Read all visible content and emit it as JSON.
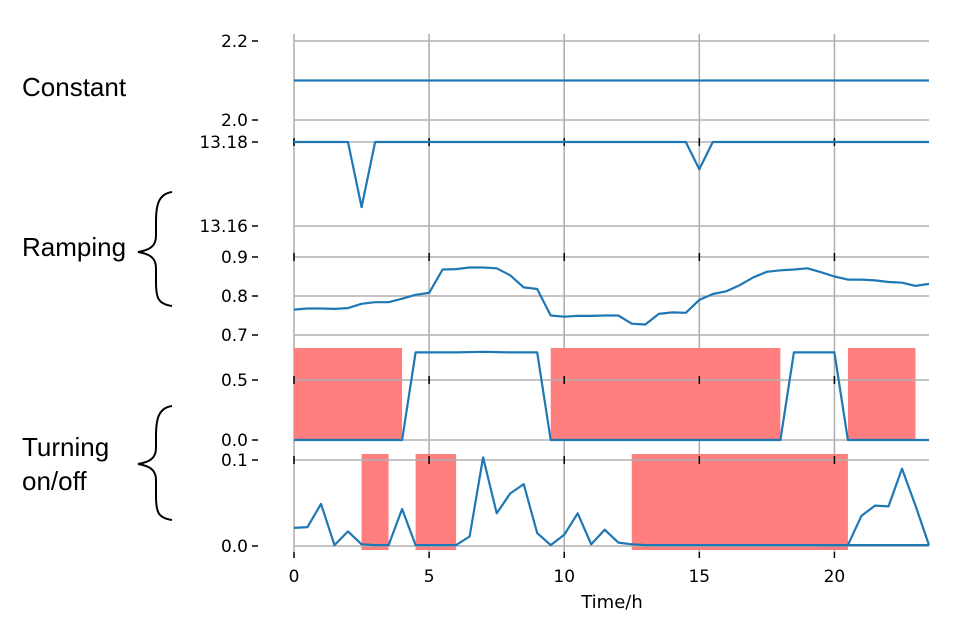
{
  "side_labels": {
    "constant": "Constant",
    "ramping": "Ramping",
    "turning_line1": "Turning",
    "turning_line2": "on/off"
  },
  "colors": {
    "line": "#1f77b4",
    "shade": "#ff7f7f",
    "grid": "#b0b0b0"
  },
  "chart_data": [
    {
      "type": "line",
      "name": "panel-constant",
      "ylim": [
        2.0,
        2.2
      ],
      "yticks": [
        "2.0",
        "2.2"
      ],
      "x": [
        0,
        23.5
      ],
      "values": [
        2.1,
        2.1
      ]
    },
    {
      "type": "line",
      "name": "panel-ramping-1",
      "ylim": [
        13.16,
        13.18
      ],
      "yticks": [
        "13.16",
        "13.18"
      ],
      "x": [
        0,
        2,
        2.5,
        3,
        14.5,
        15,
        15.5,
        23.5
      ],
      "values": [
        13.18,
        13.18,
        13.1645,
        13.18,
        13.18,
        13.1735,
        13.18,
        13.18
      ]
    },
    {
      "type": "line",
      "name": "panel-ramping-2",
      "ylim": [
        0.7,
        0.9
      ],
      "yticks": [
        "0.7",
        "0.8",
        "0.9"
      ],
      "x": [
        0,
        0.5,
        1,
        1.5,
        2,
        2.5,
        3,
        3.5,
        4,
        4.5,
        5,
        5.5,
        6,
        6.5,
        7,
        7.5,
        8,
        8.5,
        9,
        9.5,
        10,
        10.5,
        11,
        11.5,
        12,
        12.5,
        13,
        13.5,
        14,
        14.5,
        15,
        15.5,
        16,
        16.5,
        17,
        17.5,
        18,
        18.5,
        19,
        19.5,
        20,
        20.5,
        21,
        21.5,
        22,
        22.5,
        23,
        23.5
      ],
      "values": [
        0.765,
        0.768,
        0.768,
        0.767,
        0.769,
        0.78,
        0.784,
        0.784,
        0.793,
        0.803,
        0.808,
        0.868,
        0.869,
        0.873,
        0.873,
        0.871,
        0.853,
        0.822,
        0.818,
        0.75,
        0.747,
        0.749,
        0.749,
        0.75,
        0.75,
        0.729,
        0.727,
        0.754,
        0.758,
        0.757,
        0.79,
        0.805,
        0.812,
        0.828,
        0.848,
        0.862,
        0.866,
        0.868,
        0.871,
        0.861,
        0.85,
        0.842,
        0.842,
        0.84,
        0.836,
        0.834,
        0.826,
        0.831
      ]
    },
    {
      "type": "line",
      "name": "panel-turning-1",
      "ylim": [
        0.0,
        0.8
      ],
      "yticks": [
        "0.0",
        "0.5"
      ],
      "x": [
        0,
        3,
        4,
        4.5,
        5,
        6,
        7,
        8,
        9,
        9.5,
        12,
        15,
        17,
        18,
        18.5,
        19,
        20,
        20.5,
        21,
        23.5
      ],
      "values": [
        0.0,
        0.0,
        0.0,
        0.73,
        0.73,
        0.73,
        0.735,
        0.73,
        0.73,
        0.0,
        0.0,
        0.0,
        0.0,
        0.0,
        0.73,
        0.73,
        0.73,
        0.0,
        0.0,
        0.0
      ],
      "shaded": [
        [
          0,
          4
        ],
        [
          9.5,
          18
        ],
        [
          20.5,
          23
        ]
      ]
    },
    {
      "type": "line",
      "name": "panel-turning-2",
      "ylim": [
        0.0,
        0.1
      ],
      "yticks": [
        "0.0",
        "0.1"
      ],
      "x": [
        0,
        0.5,
        1,
        1.5,
        2,
        2.5,
        3,
        3.5,
        4,
        4.5,
        5,
        5.5,
        6,
        6.5,
        7,
        7.5,
        8,
        8.5,
        9,
        9.5,
        10,
        10.5,
        11,
        11.5,
        12,
        12.5,
        13,
        23.5
      ],
      "values": [
        0.021,
        0.022,
        0.049,
        0.001,
        0.017,
        0.002,
        0.001,
        0.001,
        0.043,
        0.001,
        0.001,
        0.001,
        0.001,
        0.011,
        0.103,
        0.038,
        0.061,
        0.072,
        0.015,
        0.001,
        0.013,
        0.038,
        0.002,
        0.019,
        0.004,
        0.002,
        0.001,
        0.001
      ],
      "tail_x": [
        19.5,
        20,
        20.5,
        21,
        21.5,
        22,
        22.5,
        23,
        23.5
      ],
      "tail_values": [
        0.001,
        0.001,
        0.001,
        0.035,
        0.047,
        0.046,
        0.09,
        0.047,
        0.001
      ],
      "shaded": [
        [
          2.5,
          3.5
        ],
        [
          4.5,
          6
        ],
        [
          12.5,
          20.5
        ]
      ]
    }
  ],
  "xaxis": {
    "xlim": [
      0,
      23.5
    ],
    "ticks": [
      0,
      5,
      10,
      15,
      20
    ],
    "tick_labels": [
      "0",
      "5",
      "10",
      "15",
      "20"
    ],
    "label": "Time/h"
  }
}
